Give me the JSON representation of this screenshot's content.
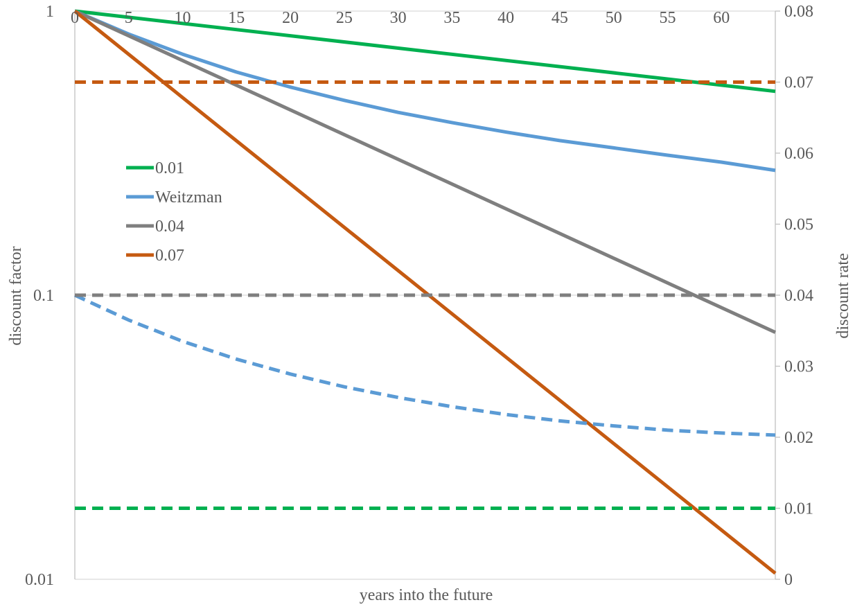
{
  "chart_data": {
    "type": "line",
    "xlabel": "years into the future",
    "ylabel_left": "discount factor",
    "ylabel_right": "discount rate",
    "x_ticks": [
      "0",
      "5",
      "10",
      "15",
      "20",
      "25",
      "30",
      "35",
      "40",
      "45",
      "50",
      "55",
      "60"
    ],
    "x_range": [
      0,
      65
    ],
    "y_left": {
      "scale": "log",
      "range": [
        0.01,
        1
      ],
      "ticks": [
        "1",
        "0.1",
        "0.01"
      ]
    },
    "y_right": {
      "scale": "linear",
      "range": [
        0,
        0.08
      ],
      "ticks": [
        "0.08",
        "0.07",
        "0.06",
        "0.05",
        "0.04",
        "0.03",
        "0.02",
        "0.01",
        "0"
      ]
    },
    "grid": "horizontal at left-axis decades",
    "legend_placement": "upper-left inside plot",
    "legend": [
      "0.01",
      "Weitzman",
      "0.04",
      "0.07"
    ],
    "series": [
      {
        "name": "0.01",
        "color": "#00b050",
        "axis": "left",
        "style": "solid",
        "x": [
          0,
          65
        ],
        "y": [
          1.0,
          0.522
        ]
      },
      {
        "name": "Weitzman",
        "color": "#5b9bd5",
        "axis": "left",
        "style": "solid",
        "x": [
          0,
          5,
          10,
          15,
          20,
          25,
          30,
          35,
          40,
          45,
          50,
          55,
          60,
          65
        ],
        "y": [
          1.0,
          0.83,
          0.705,
          0.61,
          0.54,
          0.485,
          0.44,
          0.405,
          0.375,
          0.35,
          0.33,
          0.311,
          0.294,
          0.275
        ]
      },
      {
        "name": "0.04",
        "color": "#7f7f7f",
        "axis": "left",
        "style": "solid",
        "x": [
          0,
          65
        ],
        "y": [
          1.0,
          0.074
        ]
      },
      {
        "name": "0.07",
        "color": "#c55a11",
        "axis": "left",
        "style": "solid",
        "x": [
          0,
          65
        ],
        "y": [
          1.0,
          0.0105
        ]
      },
      {
        "name": "0.01",
        "color": "#00b050",
        "axis": "right",
        "style": "dashed",
        "x": [
          0,
          65
        ],
        "y": [
          0.01,
          0.01
        ]
      },
      {
        "name": "Weitzman",
        "color": "#5b9bd5",
        "axis": "right",
        "style": "dashed",
        "x": [
          0,
          5,
          10,
          15,
          20,
          25,
          30,
          35,
          40,
          45,
          50,
          55,
          60,
          65
        ],
        "y": [
          0.04,
          0.0365,
          0.0335,
          0.031,
          0.0289,
          0.0271,
          0.0256,
          0.0243,
          0.0232,
          0.0223,
          0.0216,
          0.021,
          0.0206,
          0.0203
        ]
      },
      {
        "name": "0.04",
        "color": "#7f7f7f",
        "axis": "right",
        "style": "dashed",
        "x": [
          0,
          65
        ],
        "y": [
          0.04,
          0.04
        ]
      },
      {
        "name": "0.07",
        "color": "#c55a11",
        "axis": "right",
        "style": "dashed",
        "x": [
          0,
          65
        ],
        "y": [
          0.07,
          0.07
        ]
      }
    ]
  }
}
